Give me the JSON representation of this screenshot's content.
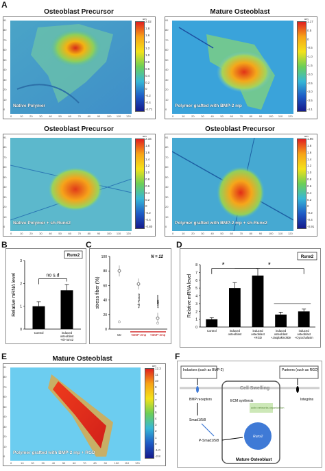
{
  "panel_letters": {
    "a": "A",
    "b": "B",
    "c": "C",
    "d": "D",
    "e": "E",
    "f": "F"
  },
  "afm": [
    {
      "title": "Osteoblast Precursor",
      "caption": "Native Polymer",
      "scale": [
        "2.02",
        "1.8",
        "1.6",
        "1.4",
        "1.2",
        "1.0",
        "0.8",
        "0.6",
        "0.4",
        "0.2",
        "0",
        "-0.2",
        "-0.4",
        "-0.71"
      ],
      "unit": "um"
    },
    {
      "title": "Mature Osteoblast",
      "caption": "Polymer grafted with BMP-2 mp",
      "scale": [
        "1.17",
        "0.5",
        "0",
        "-0.5",
        "-1.0",
        "-1.5",
        "-2.0",
        "-2.5",
        "-3.0",
        "-3.5",
        "-4.1"
      ],
      "unit": "um"
    },
    {
      "title": "Osteoblast Precursor",
      "caption": "Native Polymer + sh-Runx2",
      "scale": [
        "2.16",
        "1.8",
        "1.6",
        "1.4",
        "1.2",
        "1.0",
        "0.8",
        "0.6",
        "0.4",
        "0.2",
        "0",
        "-0.2",
        "-0.4",
        "-0.80"
      ],
      "unit": "um"
    },
    {
      "title": "Osteoblast Precursor",
      "caption": "Polymer grafted with BMP-2 mp + sh-Runx2",
      "scale": [
        "1.96",
        "1.8",
        "1.6",
        "1.4",
        "1.2",
        "1.0",
        "0.8",
        "0.6",
        "0.4",
        "0.2",
        "0",
        "-0.2",
        "-0.4",
        "-0.91"
      ],
      "unit": "um"
    }
  ],
  "afm_e": {
    "title": "Mature Osteoblast",
    "caption": "Polymer grafted with BMP-2 mp + RGD",
    "scale": [
      "12.3",
      "11",
      "10",
      "9",
      "8",
      "7",
      "6",
      "5",
      "4",
      "3",
      "2",
      "1",
      "0",
      "-1.0",
      "-2.8"
    ],
    "unit": "um"
  },
  "afm_axes": {
    "y_ticks": [
      "91",
      "80",
      "70",
      "60",
      "50",
      "40",
      "30",
      "20",
      "10",
      "0"
    ],
    "x_ticks": [
      "0",
      "10",
      "20",
      "30",
      "40",
      "50",
      "60",
      "70",
      "80",
      "90",
      "100",
      "110",
      "120"
    ],
    "unit": "um"
  },
  "chart_data": [
    {
      "type": "bar",
      "panel": "B",
      "badge": "Runx2",
      "ylabel": "Relative mRNA level",
      "yticks": [
        "0",
        "1",
        "2",
        "3"
      ],
      "ylim": [
        0,
        3
      ],
      "categories": [
        "Control",
        "induced osteoblast +sh-runx2"
      ],
      "values": [
        1.0,
        1.7
      ],
      "errors": [
        0.2,
        0.25
      ],
      "annotation": "no s.d"
    },
    {
      "type": "scatter",
      "panel": "C",
      "ylabel": "stress fiber (%)",
      "yticks": [
        "0",
        "20",
        "40",
        "60",
        "80",
        "100"
      ],
      "ylim": [
        0,
        100
      ],
      "n_label": "N = 12",
      "categories": [
        "Ctr",
        "+BMP-2mp",
        "+BMP-2mp"
      ],
      "x_annotations": [
        "+sh-Runx2",
        "+RGD"
      ],
      "points": [
        {
          "x": 0,
          "y": 80
        },
        {
          "x": 1,
          "y": 62
        },
        {
          "x": 2,
          "y": 15
        }
      ],
      "minor_points": [
        {
          "x": 0,
          "y": 10
        },
        {
          "x": 2,
          "y": 8
        }
      ]
    },
    {
      "type": "bar",
      "panel": "D",
      "badge": "Runx2",
      "ylabel": "Relative mRNA level",
      "yticks": [
        "0",
        "1",
        "2",
        "3",
        "4",
        "5",
        "6",
        "7",
        "8"
      ],
      "ylim": [
        0,
        8
      ],
      "categories": [
        "Control",
        "induced osteoblast",
        "induced osteoblast +RGD",
        "induced osteoblast +Jasplakinolide",
        "induced osteoblast +Cytochalasin"
      ],
      "values": [
        1.0,
        5.0,
        6.6,
        1.6,
        2.0
      ],
      "errors": [
        0.2,
        0.7,
        0.9,
        0.3,
        0.3
      ],
      "annotation": "*"
    }
  ],
  "diagram_f": {
    "inductors": "Inductors (such as BMP-2)",
    "bmp_receptors": "BMP receptors",
    "smad": "Smad1/5/8",
    "p_smad": "P-Smad1/5/8",
    "cell_swelling": "Cell Swelling",
    "ecm": "ECM synthesis",
    "actin": "actin networks organization",
    "runx2": "Runx2",
    "partners": "Partners (such as RGD)",
    "integrins": "Integrins",
    "mature": "Mature Osteoblast"
  }
}
